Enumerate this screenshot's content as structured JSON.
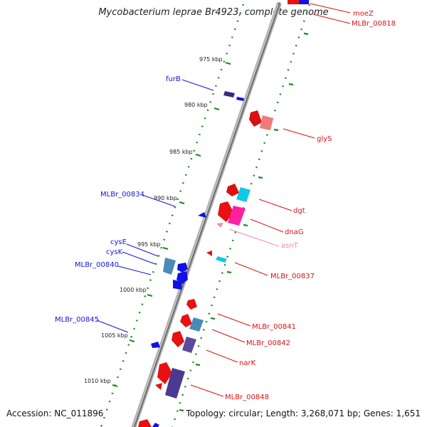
{
  "title": "Mycobacterium leprae Br4923, complete genome",
  "footer": {
    "accession": "Accession: NC_011896",
    "summary": "Topology: circular; Length: 3,268,071 bp; Genes: 1,651"
  },
  "scale_labels": [
    "975 kbp",
    "980 kbp",
    "985 kbp",
    "990 kbp",
    "995 kbp",
    "1000 kbp",
    "1005 kbp",
    "1010 kbp"
  ],
  "gene_labels": {
    "forward": [
      {
        "text": "moeZ",
        "color": "#e01010"
      },
      {
        "text": "MLBr_00818",
        "color": "#e01010"
      },
      {
        "text": "glyS",
        "color": "#e01010"
      },
      {
        "text": "dgt",
        "color": "#e01010"
      },
      {
        "text": "dnaG",
        "color": "#e01010"
      },
      {
        "text": "asnT",
        "color": "#f08ab5"
      },
      {
        "text": "MLBr_00837",
        "color": "#e01010"
      },
      {
        "text": "MLBr_00841",
        "color": "#e01010"
      },
      {
        "text": "MLBr_00842",
        "color": "#e01010"
      },
      {
        "text": "narK",
        "color": "#e01010"
      },
      {
        "text": "MLBr_00848",
        "color": "#e01010"
      }
    ],
    "reverse": [
      {
        "text": "furB",
        "color": "#1515d8"
      },
      {
        "text": "MLBr_00834",
        "color": "#1515d8"
      },
      {
        "text": "cysE",
        "color": "#1515d8"
      },
      {
        "text": "cysK",
        "color": "#1515d8"
      },
      {
        "text": "MLBr_00840",
        "color": "#1515d8"
      },
      {
        "text": "MLBr_00845",
        "color": "#1515d8"
      }
    ]
  },
  "colors": {
    "forward_cds": "#e81010",
    "reverse_cds": "#1010e8",
    "gc_skew_ticks": "#1f8a1f",
    "backbone": "#8a8a8a",
    "trna": "#f58ac0"
  }
}
